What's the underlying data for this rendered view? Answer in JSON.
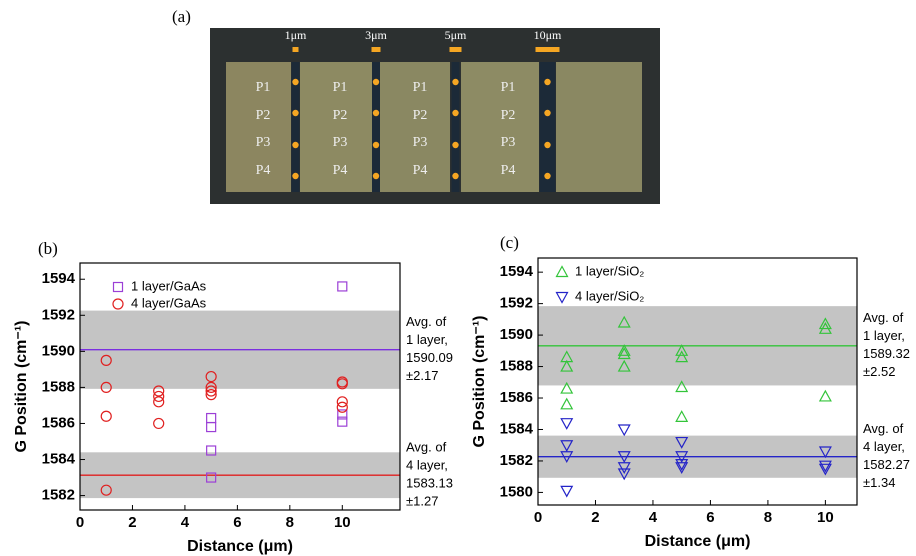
{
  "photo": {
    "label": "(a)",
    "scale_bars": [
      "1μm",
      "3μm",
      "5μm",
      "10μm"
    ],
    "pad_labels": [
      "P1",
      "P2",
      "P3",
      "P4"
    ]
  },
  "chart_data": [
    {
      "type": "scatter",
      "panel_label": "(b)",
      "x_label": "Distance (μm)",
      "y_label": "G Position (cm⁻¹)",
      "xlim": [
        0,
        12.2
      ],
      "xticks": [
        0,
        2,
        4,
        6,
        8,
        10
      ],
      "ylim": [
        1581.2,
        1594.9
      ],
      "yticks": [
        1582,
        1584,
        1586,
        1588,
        1590,
        1592,
        1594
      ],
      "series": [
        {
          "name": "1 layer/GaAs",
          "color": "#9b3fd6",
          "marker": "square",
          "x": [
            5,
            5,
            5,
            5,
            10,
            10,
            10
          ],
          "values": [
            1583,
            1584.5,
            1585.8,
            1586.3,
            1593.6,
            1586.5,
            1586.1
          ]
        },
        {
          "name": "4 layer/GaAs",
          "color": "#e02020",
          "marker": "circle",
          "x": [
            1,
            1,
            1,
            1,
            3,
            3,
            3,
            3,
            5,
            5,
            5,
            5,
            10,
            10,
            10,
            10
          ],
          "values": [
            1589.5,
            1588,
            1586.4,
            1582.3,
            1587.8,
            1587.5,
            1587.2,
            1586,
            1588.6,
            1588,
            1587.8,
            1587.6,
            1588.3,
            1588.2,
            1587.2,
            1586.9
          ]
        }
      ],
      "bands": [
        {
          "color": "#7b2fe0",
          "mean": 1590.09,
          "std": 2.17,
          "std_label": "±2.17",
          "label": [
            "Avg. of",
            "1 layer,"
          ]
        },
        {
          "color": "#e02020",
          "mean": 1583.13,
          "std": 1.27,
          "std_label": "±1.27",
          "label": [
            "Avg. of",
            "4 layer,"
          ]
        }
      ]
    },
    {
      "type": "scatter",
      "panel_label": "(c)",
      "x_label": "Distance (μm)",
      "y_label": "G Position (cm⁻¹)",
      "xlim": [
        0,
        11.1
      ],
      "xticks": [
        0,
        2,
        4,
        6,
        8,
        10
      ],
      "ylim": [
        1579.2,
        1594.9
      ],
      "yticks": [
        1580,
        1582,
        1584,
        1586,
        1588,
        1590,
        1592,
        1594
      ],
      "series": [
        {
          "name": "1 layer/SiO₂",
          "color": "#33c43a",
          "marker": "triangle-up",
          "x": [
            1,
            1,
            1,
            1,
            3,
            3,
            3,
            3,
            5,
            5,
            5,
            5,
            10,
            10,
            10
          ],
          "values": [
            1588.6,
            1588,
            1586.6,
            1585.6,
            1590.8,
            1589,
            1588.8,
            1588,
            1589,
            1588.6,
            1586.7,
            1584.8,
            1590.7,
            1590.4,
            1586.1
          ]
        },
        {
          "name": "4 layer/SiO₂",
          "color": "#2424c8",
          "marker": "triangle-down",
          "x": [
            1,
            1,
            1,
            1,
            3,
            3,
            3,
            3,
            5,
            5,
            5,
            5,
            10,
            10,
            10
          ],
          "values": [
            1584.4,
            1583,
            1582.3,
            1580.1,
            1584,
            1582.3,
            1581.6,
            1581.2,
            1583.2,
            1582.3,
            1581.8,
            1581.6,
            1582.6,
            1581.7,
            1581.5
          ]
        }
      ],
      "bands": [
        {
          "color": "#33c43a",
          "mean": 1589.32,
          "std": 2.52,
          "std_label": "±2.52",
          "label": [
            "Avg. of",
            "1 layer,"
          ]
        },
        {
          "color": "#2424c8",
          "mean": 1582.27,
          "std": 1.34,
          "std_label": "±1.34",
          "label": [
            "Avg. of",
            "4 layer,"
          ]
        }
      ]
    }
  ]
}
